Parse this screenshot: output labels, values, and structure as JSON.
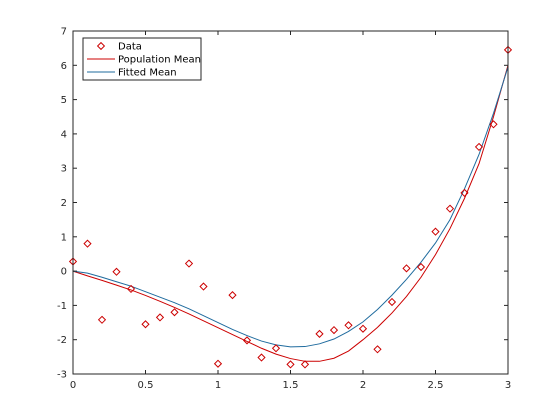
{
  "chart_data": {
    "type": "scatter",
    "title": "",
    "xlabel": "",
    "ylabel": "",
    "xlim": [
      0,
      3
    ],
    "ylim": [
      -3,
      7
    ],
    "x_ticks": [
      0,
      0.5,
      1,
      1.5,
      2,
      2.5,
      3
    ],
    "x_tick_labels": [
      "0",
      "0.5",
      "1",
      "1.5",
      "2",
      "2.5",
      "3"
    ],
    "y_ticks": [
      -3,
      -2,
      -1,
      0,
      1,
      2,
      3,
      4,
      5,
      6,
      7
    ],
    "y_tick_labels": [
      "-3",
      "-2",
      "-1",
      "0",
      "1",
      "2",
      "3",
      "4",
      "5",
      "6",
      "7"
    ],
    "grid": false,
    "legend_position": "top-left",
    "series": [
      {
        "name": "Data",
        "kind": "markers",
        "marker": "diamond",
        "color": "#cc0000",
        "x": [
          0,
          0.1,
          0.2,
          0.3,
          0.4,
          0.5,
          0.6,
          0.7,
          0.8,
          0.9,
          1.0,
          1.1,
          1.2,
          1.3,
          1.4,
          1.5,
          1.6,
          1.7,
          1.8,
          1.9,
          2.0,
          2.1,
          2.2,
          2.3,
          2.4,
          2.5,
          2.6,
          2.7,
          2.8,
          2.9,
          3.0
        ],
        "y": [
          0.28,
          0.8,
          -1.42,
          -0.02,
          -0.52,
          -1.55,
          -1.35,
          -1.2,
          0.22,
          -0.45,
          -2.7,
          -0.7,
          -2.02,
          -2.52,
          -2.25,
          -2.72,
          -2.72,
          -1.83,
          -1.72,
          -1.58,
          -1.68,
          -2.28,
          -0.9,
          0.08,
          0.12,
          1.15,
          1.82,
          2.28,
          3.62,
          4.28,
          6.45
        ]
      },
      {
        "name": "Population Mean",
        "kind": "line",
        "color": "#cc0000",
        "x": [
          0,
          0.1,
          0.2,
          0.3,
          0.4,
          0.5,
          0.6,
          0.7,
          0.8,
          0.9,
          1.0,
          1.1,
          1.2,
          1.3,
          1.4,
          1.5,
          1.6,
          1.7,
          1.8,
          1.9,
          2.0,
          2.1,
          2.2,
          2.3,
          2.4,
          2.5,
          2.6,
          2.7,
          2.8,
          2.9,
          3.0
        ],
        "y": [
          0,
          -0.14,
          -0.27,
          -0.41,
          -0.55,
          -0.71,
          -0.88,
          -1.06,
          -1.25,
          -1.45,
          -1.65,
          -1.85,
          -2.05,
          -2.25,
          -2.42,
          -2.55,
          -2.63,
          -2.63,
          -2.54,
          -2.33,
          -2.0,
          -1.64,
          -1.22,
          -0.74,
          -0.18,
          0.48,
          1.24,
          2.12,
          3.13,
          4.5,
          6.0
        ]
      },
      {
        "name": "Fitted Mean",
        "kind": "line",
        "color": "#1f6b9e",
        "x": [
          0,
          0.1,
          0.2,
          0.3,
          0.4,
          0.5,
          0.6,
          0.7,
          0.8,
          0.9,
          1.0,
          1.1,
          1.2,
          1.3,
          1.4,
          1.5,
          1.6,
          1.7,
          1.8,
          1.9,
          2.0,
          2.1,
          2.2,
          2.3,
          2.4,
          2.5,
          2.6,
          2.7,
          2.8,
          2.9,
          3.0
        ],
        "y": [
          0,
          -0.06,
          -0.18,
          -0.31,
          -0.44,
          -0.6,
          -0.76,
          -0.92,
          -1.1,
          -1.3,
          -1.5,
          -1.7,
          -1.88,
          -2.04,
          -2.15,
          -2.21,
          -2.2,
          -2.12,
          -1.98,
          -1.76,
          -1.48,
          -1.12,
          -0.7,
          -0.24,
          0.26,
          0.82,
          1.5,
          2.4,
          3.4,
          4.6,
          5.95
        ]
      }
    ]
  }
}
